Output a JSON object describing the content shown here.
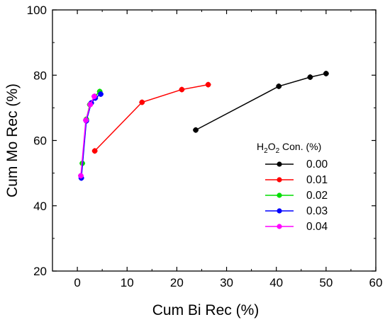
{
  "chart_data": {
    "type": "line",
    "xlabel": "Cum Bi Rec (%)",
    "ylabel": "Cum Mo Rec (%)",
    "xlim": [
      -5,
      60
    ],
    "ylim": [
      20,
      100
    ],
    "x_ticks": [
      0,
      10,
      20,
      30,
      40,
      50,
      60
    ],
    "y_ticks": [
      20,
      40,
      60,
      80,
      100
    ],
    "grid": false,
    "legend": {
      "title_parts": [
        "H",
        "2",
        "O",
        "2",
        " Con. (%)"
      ],
      "placement": "right"
    },
    "series": [
      {
        "name": "0.00",
        "color": "#000000",
        "marker": "circle",
        "points": [
          {
            "x": 23.8,
            "y": 63.2
          },
          {
            "x": 40.5,
            "y": 76.6
          },
          {
            "x": 46.8,
            "y": 79.4
          },
          {
            "x": 50.0,
            "y": 80.5
          }
        ]
      },
      {
        "name": "0.01",
        "color": "#ff0000",
        "marker": "circle",
        "points": [
          {
            "x": 3.5,
            "y": 56.8
          },
          {
            "x": 13.0,
            "y": 71.7
          },
          {
            "x": 21.0,
            "y": 75.6
          },
          {
            "x": 26.3,
            "y": 77.1
          }
        ]
      },
      {
        "name": "0.02",
        "color": "#00dd00",
        "marker": "circle",
        "points": [
          {
            "x": 1.0,
            "y": 53.0
          },
          {
            "x": 1.8,
            "y": 66.5
          },
          {
            "x": 2.5,
            "y": 71.0
          },
          {
            "x": 3.5,
            "y": 73.5
          },
          {
            "x": 4.5,
            "y": 75.0
          }
        ]
      },
      {
        "name": "0.03",
        "color": "#0000ff",
        "marker": "circle",
        "points": [
          {
            "x": 0.8,
            "y": 48.5
          },
          {
            "x": 1.8,
            "y": 66.0
          },
          {
            "x": 2.8,
            "y": 71.5
          },
          {
            "x": 3.6,
            "y": 73.0
          },
          {
            "x": 4.7,
            "y": 74.2
          }
        ]
      },
      {
        "name": "0.04",
        "color": "#ff00ff",
        "marker": "circle",
        "points": [
          {
            "x": 0.7,
            "y": 49.2
          },
          {
            "x": 1.7,
            "y": 66.2
          },
          {
            "x": 2.6,
            "y": 71.0
          },
          {
            "x": 3.4,
            "y": 73.5
          }
        ]
      }
    ]
  }
}
